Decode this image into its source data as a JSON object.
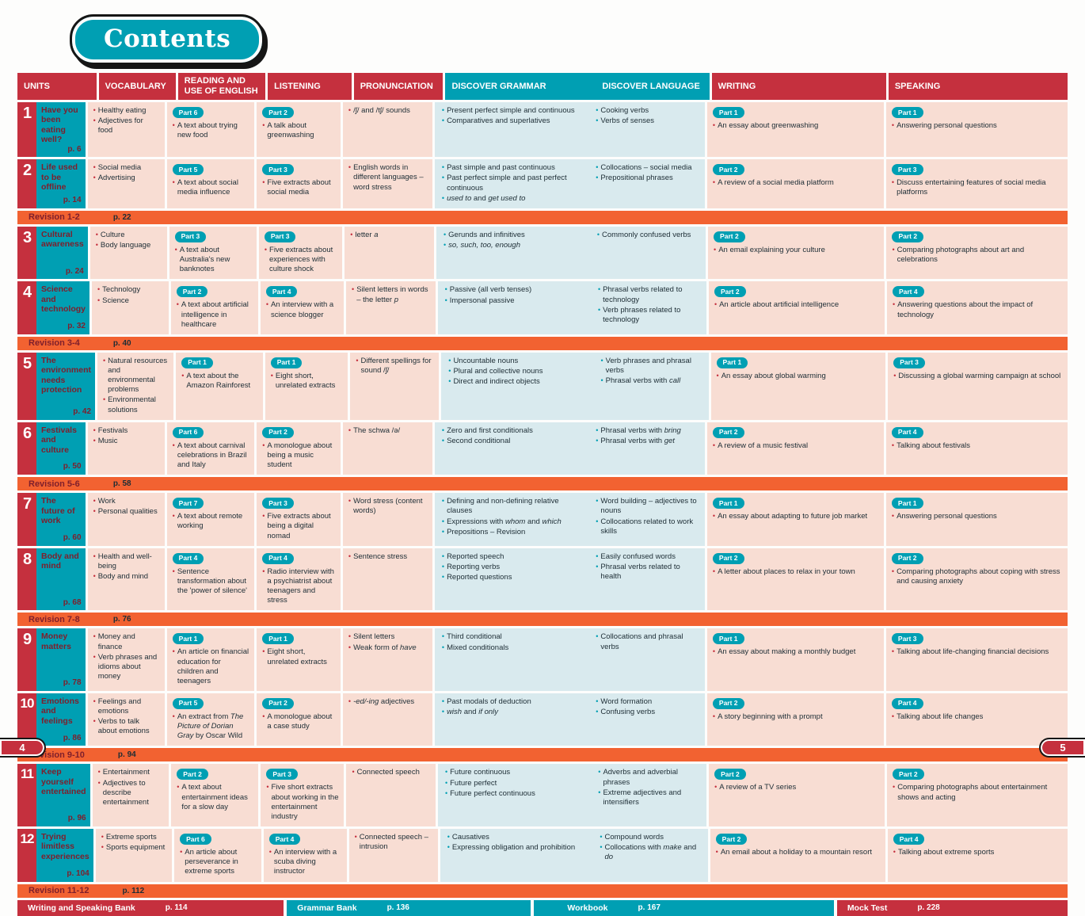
{
  "page": {
    "title": "Contents",
    "page_left": "4",
    "page_right": "5"
  },
  "table": {
    "headers": [
      "UNITS",
      "VOCABULARY",
      "READING AND USE OF ENGLISH",
      "LISTENING",
      "PRONUNCIATION",
      "DISCOVER GRAMMAR",
      "DISCOVER LANGUAGE",
      "WRITING",
      "SPEAKING"
    ],
    "rows": [
      {
        "type": "unit",
        "number": "1",
        "title": "Have you been eating well?",
        "page": "p. 6",
        "vocabulary": [
          "Healthy eating",
          "Adjectives for food"
        ],
        "reading": {
          "part": "Part 6",
          "items": [
            "A text about trying new food"
          ]
        },
        "listening": {
          "part": "Part 2",
          "items": [
            "A talk about greenwashing"
          ]
        },
        "pronunciation": [
          "/ʃ/ and /tʃ/ sounds"
        ],
        "grammar": [
          "Present perfect simple and continuous",
          "Comparatives and superlatives"
        ],
        "language": [
          "Cooking verbs",
          "Verbs of senses"
        ],
        "writing": {
          "part": "Part 1",
          "items": [
            "An essay about greenwashing"
          ]
        },
        "speaking": {
          "part": "Part 1",
          "items": [
            "Answering personal questions"
          ]
        }
      },
      {
        "type": "unit",
        "number": "2",
        "title": "Life used to be offline",
        "page": "p. 14",
        "vocabulary": [
          "Social media",
          "Advertising"
        ],
        "reading": {
          "part": "Part 5",
          "items": [
            "A text about social media influence"
          ]
        },
        "listening": {
          "part": "Part 3",
          "items": [
            "Five extracts about social media"
          ]
        },
        "pronunciation": [
          "English words in different languages – word stress"
        ],
        "grammar": [
          "Past simple and past continuous",
          "Past perfect simple and past perfect continuous",
          "*used to* and *get used to*"
        ],
        "language": [
          "Collocations – social media",
          "Prepositional phrases"
        ],
        "writing": {
          "part": "Part 2",
          "items": [
            "A review of a social media platform"
          ]
        },
        "speaking": {
          "part": "Part 3",
          "items": [
            "Discuss entertaining features of social media platforms"
          ]
        }
      },
      {
        "type": "revision",
        "label": "Revision 1-2",
        "page": "p. 22"
      },
      {
        "type": "unit",
        "number": "3",
        "title": "Cultural awareness",
        "page": "p. 24",
        "vocabulary": [
          "Culture",
          "Body language"
        ],
        "reading": {
          "part": "Part 3",
          "items": [
            "A text about Australia's new banknotes"
          ]
        },
        "listening": {
          "part": "Part 3",
          "items": [
            "Five extracts about experiences with culture shock"
          ]
        },
        "pronunciation": [
          "letter *a*"
        ],
        "grammar": [
          "Gerunds and infinitives",
          "*so, such, too, enough*"
        ],
        "language": [
          "Commonly confused verbs"
        ],
        "writing": {
          "part": "Part 2",
          "items": [
            "An email explaining your culture"
          ]
        },
        "speaking": {
          "part": "Part 2",
          "items": [
            "Comparing photographs about art and celebrations"
          ]
        }
      },
      {
        "type": "unit",
        "number": "4",
        "title": "Science and technology",
        "page": "p. 32",
        "vocabulary": [
          "Technology",
          "Science"
        ],
        "reading": {
          "part": "Part 2",
          "items": [
            "A text about artificial intelligence in healthcare"
          ]
        },
        "listening": {
          "part": "Part 4",
          "items": [
            "An interview with a science blogger"
          ]
        },
        "pronunciation": [
          "Silent letters in words – the letter *p*"
        ],
        "grammar": [
          "Passive (all verb tenses)",
          "Impersonal passive"
        ],
        "language": [
          "Phrasal verbs related to technology",
          "Verb phrases related to technology"
        ],
        "writing": {
          "part": "Part 2",
          "items": [
            "An article about artificial intelligence"
          ]
        },
        "speaking": {
          "part": "Part 4",
          "items": [
            "Answering questions about the impact of technology"
          ]
        }
      },
      {
        "type": "revision",
        "label": "Revision 3-4",
        "page": "p. 40"
      },
      {
        "type": "unit",
        "number": "5",
        "title": "The environment needs protection",
        "page": "p. 42",
        "vocabulary": [
          "Natural resources and environmental problems",
          "Environmental solutions"
        ],
        "reading": {
          "part": "Part 1",
          "items": [
            "A text about the Amazon Rainforest"
          ]
        },
        "listening": {
          "part": "Part 1",
          "items": [
            "Eight short, unrelated extracts"
          ]
        },
        "pronunciation": [
          "Different spellings for sound /ʃ/"
        ],
        "grammar": [
          "Uncountable nouns",
          "Plural and collective nouns",
          "Direct and indirect objects"
        ],
        "language": [
          "Verb phrases and phrasal verbs",
          "Phrasal verbs with *call*"
        ],
        "writing": {
          "part": "Part 1",
          "items": [
            "An essay about global warming"
          ]
        },
        "speaking": {
          "part": "Part 3",
          "items": [
            "Discussing a global warming campaign at school"
          ]
        }
      },
      {
        "type": "unit",
        "number": "6",
        "title": "Festivals and culture",
        "page": "p. 50",
        "vocabulary": [
          "Festivals",
          "Music"
        ],
        "reading": {
          "part": "Part 6",
          "items": [
            "A text about carnival celebrations in Brazil and Italy"
          ]
        },
        "listening": {
          "part": "Part 2",
          "items": [
            "A monologue about being a music student"
          ]
        },
        "pronunciation": [
          "The schwa /ə/"
        ],
        "grammar": [
          "Zero and first conditionals",
          "Second conditional"
        ],
        "language": [
          "Phrasal verbs with *bring*",
          "Phrasal verbs with *get*"
        ],
        "writing": {
          "part": "Part 2",
          "items": [
            "A review of a music festival"
          ]
        },
        "speaking": {
          "part": "Part 4",
          "items": [
            "Talking about festivals"
          ]
        }
      },
      {
        "type": "revision",
        "label": "Revision 5-6",
        "page": "p. 58"
      },
      {
        "type": "unit",
        "number": "7",
        "title": "The future of work",
        "page": "p. 60",
        "vocabulary": [
          "Work",
          "Personal qualities"
        ],
        "reading": {
          "part": "Part 7",
          "items": [
            "A text about remote working"
          ]
        },
        "listening": {
          "part": "Part 3",
          "items": [
            "Five extracts about being a digital nomad"
          ]
        },
        "pronunciation": [
          "Word stress (content words)"
        ],
        "grammar": [
          "Defining and non-defining relative clauses",
          "Expressions with *whom* and *which*",
          "Prepositions – Revision"
        ],
        "language": [
          "Word building – adjectives to nouns",
          "Collocations related to work skills"
        ],
        "writing": {
          "part": "Part 1",
          "items": [
            "An essay about adapting to future job market"
          ]
        },
        "speaking": {
          "part": "Part 1",
          "items": [
            "Answering personal questions"
          ]
        }
      },
      {
        "type": "unit",
        "number": "8",
        "title": "Body and mind",
        "page": "p. 68",
        "vocabulary": [
          "Health and well-being",
          "Body and mind"
        ],
        "reading": {
          "part": "Part 4",
          "items": [
            "Sentence transformation about the 'power of silence'"
          ]
        },
        "listening": {
          "part": "Part 4",
          "items": [
            "Radio interview with a psychiatrist about teenagers and stress"
          ]
        },
        "pronunciation": [
          "Sentence stress"
        ],
        "grammar": [
          "Reported speech",
          "Reporting verbs",
          "Reported questions"
        ],
        "language": [
          "Easily confused words",
          "Phrasal verbs related to health"
        ],
        "writing": {
          "part": "Part 2",
          "items": [
            "A letter about places to relax in your town"
          ]
        },
        "speaking": {
          "part": "Part 2",
          "items": [
            "Comparing photographs about coping with stress and causing anxiety"
          ]
        }
      },
      {
        "type": "revision",
        "label": "Revision 7-8",
        "page": "p. 76"
      },
      {
        "type": "unit",
        "number": "9",
        "title": "Money matters",
        "page": "p. 78",
        "vocabulary": [
          "Money and finance",
          "Verb phrases and idioms about money"
        ],
        "reading": {
          "part": "Part 1",
          "items": [
            "An article on financial education for children and teenagers"
          ]
        },
        "listening": {
          "part": "Part 1",
          "items": [
            "Eight short, unrelated extracts"
          ]
        },
        "pronunciation": [
          "Silent letters",
          "Weak form of *have*"
        ],
        "grammar": [
          "Third conditional",
          "Mixed conditionals"
        ],
        "language": [
          "Collocations and phrasal verbs"
        ],
        "writing": {
          "part": "Part 1",
          "items": [
            "An essay about making a monthly budget"
          ]
        },
        "speaking": {
          "part": "Part 3",
          "items": [
            "Talking about life-changing financial decisions"
          ]
        }
      },
      {
        "type": "unit",
        "number": "10",
        "title": "Emotions and feelings",
        "page": "p. 86",
        "vocabulary": [
          "Feelings and emotions",
          "Verbs to talk about emotions"
        ],
        "reading": {
          "part": "Part 5",
          "items": [
            "An extract from *The Picture of Dorian Gray* by Oscar Wild"
          ]
        },
        "listening": {
          "part": "Part 2",
          "items": [
            "A monologue about a case study"
          ]
        },
        "pronunciation": [
          "*-ed/-ing* adjectives"
        ],
        "grammar": [
          "Past modals of deduction",
          "*wish* and *if only*"
        ],
        "language": [
          "Word formation",
          "Confusing verbs"
        ],
        "writing": {
          "part": "Part 2",
          "items": [
            "A story beginning with a prompt"
          ]
        },
        "speaking": {
          "part": "Part 4",
          "items": [
            "Talking about life changes"
          ]
        }
      },
      {
        "type": "revision",
        "label": "Revision 9-10",
        "page": "p. 94"
      },
      {
        "type": "unit",
        "number": "11",
        "title": "Keep yourself entertained",
        "page": "p. 96",
        "vocabulary": [
          "Entertainment",
          "Adjectives to describe entertainment"
        ],
        "reading": {
          "part": "Part 2",
          "items": [
            "A text about entertainment ideas for a slow day"
          ]
        },
        "listening": {
          "part": "Part 3",
          "items": [
            "Five short extracts about working in the entertainment industry"
          ]
        },
        "pronunciation": [
          "Connected speech"
        ],
        "grammar": [
          "Future continuous",
          "Future perfect",
          "Future perfect continuous"
        ],
        "language": [
          "Adverbs and adverbial phrases",
          "Extreme adjectives and intensifiers"
        ],
        "writing": {
          "part": "Part 2",
          "items": [
            "A review of a TV series"
          ]
        },
        "speaking": {
          "part": "Part 2",
          "items": [
            "Comparing photographs about entertainment shows and acting"
          ]
        }
      },
      {
        "type": "unit",
        "number": "12",
        "title": "Trying limitless experiences",
        "page": "p. 104",
        "vocabulary": [
          "Extreme sports",
          "Sports equipment"
        ],
        "reading": {
          "part": "Part 6",
          "items": [
            "An article about perseverance in extreme sports"
          ]
        },
        "listening": {
          "part": "Part 4",
          "items": [
            "An interview with a scuba diving instructor"
          ]
        },
        "pronunciation": [
          "Connected speech – intrusion"
        ],
        "grammar": [
          "Causatives",
          "Expressing obligation and prohibition"
        ],
        "language": [
          "Compound words",
          "Collocations with *make* and *do*"
        ],
        "writing": {
          "part": "Part 2",
          "items": [
            "An email about a holiday to a mountain resort"
          ]
        },
        "speaking": {
          "part": "Part 4",
          "items": [
            "Talking about extreme sports"
          ]
        }
      },
      {
        "type": "revision",
        "label": "Revision 11-12",
        "page": "p. 112"
      }
    ]
  },
  "footer": {
    "banks": [
      {
        "label": "Writing and Speaking Bank",
        "page": "p. 114",
        "color": "red"
      },
      {
        "label": "Grammar Bank",
        "page": "p. 136",
        "color": "teal"
      },
      {
        "label": "Workbook",
        "page": "p. 167",
        "color": "teal"
      },
      {
        "label": "Mock Test",
        "page": "p. 228",
        "color": "red"
      }
    ]
  }
}
